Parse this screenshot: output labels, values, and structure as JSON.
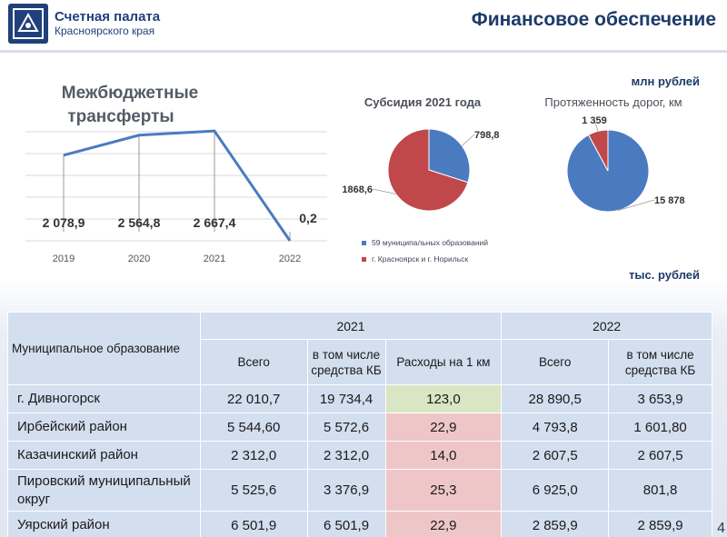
{
  "header": {
    "org_name": "Счетная палата",
    "org_region": "Красноярского края",
    "page_title": "Финансовое обеспечение",
    "emblem_icon": "emblem-icon"
  },
  "units": {
    "mln": "млн рублей",
    "ths": "тыс. рублей"
  },
  "chart_data": [
    {
      "type": "line",
      "title": "Межбюджетные трансферты",
      "categories": [
        "2019",
        "2020",
        "2021",
        "2022"
      ],
      "values": [
        2078.9,
        2564.8,
        2667.4,
        0.2
      ],
      "labels": [
        "2 078,9",
        "2 564,8",
        "2 667,4",
        "0,2"
      ],
      "ylim": [
        0,
        3200
      ],
      "grid": true,
      "color": "#4a7bc0"
    },
    {
      "type": "pie",
      "title": "Субсидия 2021 года",
      "slices": [
        {
          "label": "798,8",
          "value": 798.8,
          "color": "#4a7bc0"
        },
        {
          "label": "1868,6",
          "value": 1868.6,
          "color": "#c0474a"
        }
      ],
      "legend": [
        {
          "name": "59 муниципальных образований",
          "color": "#4a7bc0"
        },
        {
          "name": "г. Красноярск и г. Норильск",
          "color": "#c0474a"
        }
      ],
      "legend_position": "bottom"
    },
    {
      "type": "pie",
      "title": "Протяженность дорог, км",
      "slices": [
        {
          "label": "15 878",
          "value": 15878,
          "color": "#4a7bc0"
        },
        {
          "label": "1 359",
          "value": 1359,
          "color": "#c0474a"
        }
      ]
    },
    {
      "type": "table",
      "corner": "Муниципальное образование",
      "groups": [
        "2021",
        "2022"
      ],
      "columns": [
        "Всего",
        "в том числе средства КБ",
        "Расходы на 1 км",
        "Всего",
        "в том числе средства КБ"
      ],
      "rows": [
        {
          "name": "г. Дивногорск",
          "values": [
            "22 010,7",
            "19 734,4",
            "123,0",
            "28 890,5",
            "3 653,9"
          ],
          "status": "good"
        },
        {
          "name": "Ирбейский район",
          "values": [
            "5 544,60",
            "5 572,6",
            "22,9",
            "4 793,8",
            "1 601,80"
          ],
          "status": "bad"
        },
        {
          "name": "Казачинский район",
          "values": [
            "2 312,0",
            "2 312,0",
            "14,0",
            "2 607,5",
            "2 607,5"
          ],
          "status": "bad"
        },
        {
          "name": "Пировский муниципальный округ",
          "values": [
            "5 525,6",
            "3 376,9",
            "25,3",
            "6 925,0",
            "801,8"
          ],
          "status": "bad"
        },
        {
          "name": "Уярский район",
          "values": [
            "6 501,9",
            "6 501,9",
            "22,9",
            "2 859,9",
            "2 859,9"
          ],
          "status": "bad"
        }
      ]
    }
  ],
  "page_number": "4"
}
